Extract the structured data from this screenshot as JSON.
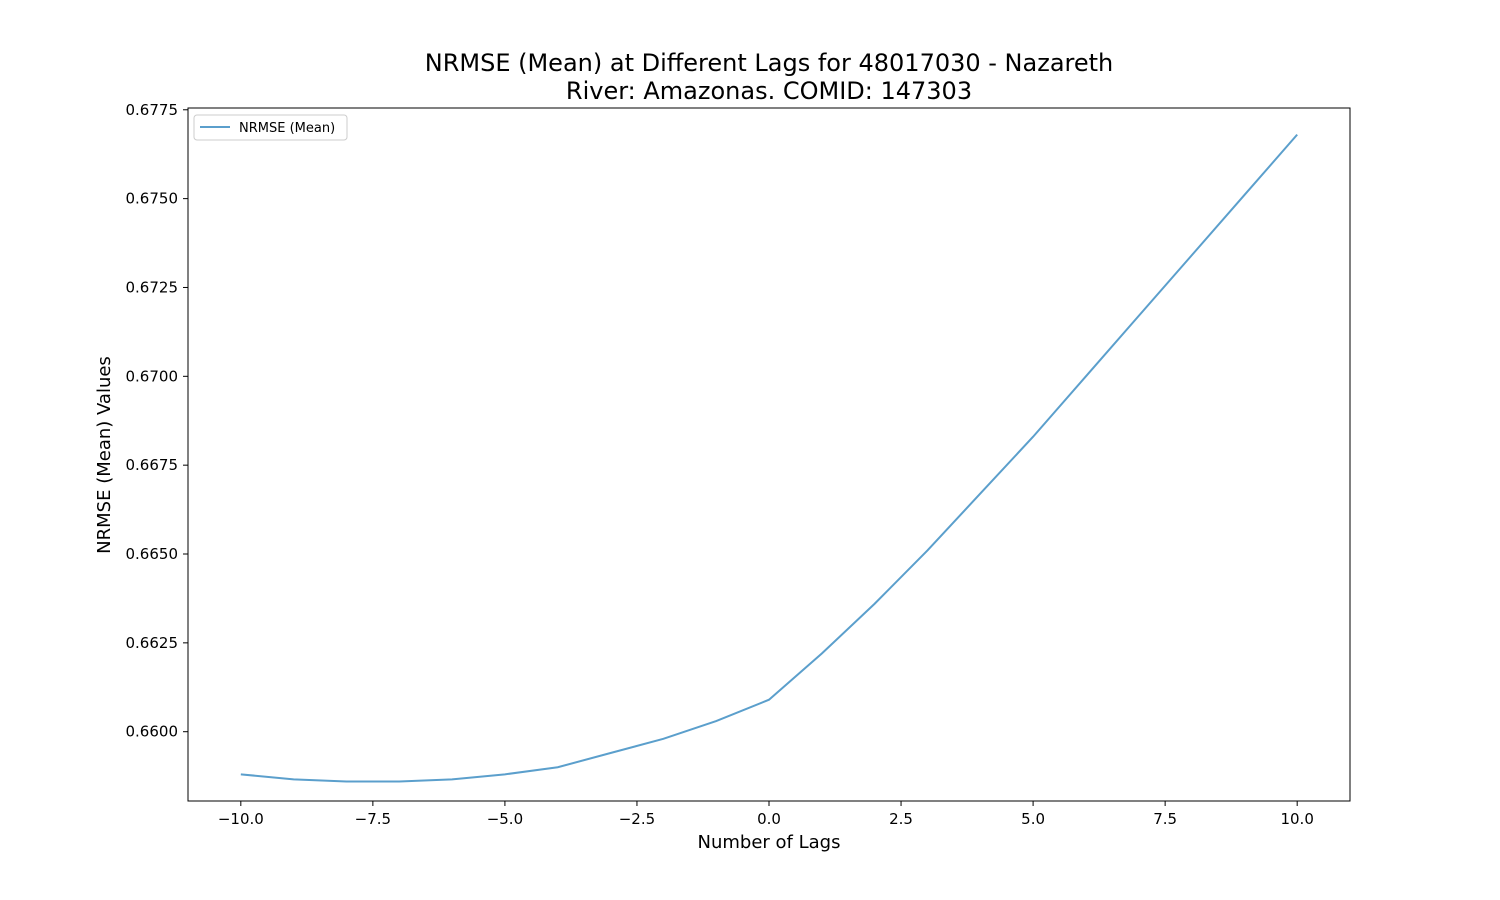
{
  "chart_data": {
    "type": "line",
    "title_line1": "NRMSE (Mean) at Different Lags for 48017030 - Nazareth",
    "title_line2": "River: Amazonas. COMID: 147303",
    "xlabel": "Number of Lags",
    "ylabel": "NRMSE (Mean) Values",
    "xlim": [
      -11,
      11
    ],
    "ylim": [
      0.65805,
      0.67755
    ],
    "x_ticks": [
      -10.0,
      -7.5,
      -5.0,
      -2.5,
      0.0,
      2.5,
      5.0,
      7.5,
      10.0
    ],
    "x_tick_labels": [
      "−10.0",
      "−7.5",
      "−5.0",
      "−2.5",
      "0.0",
      "2.5",
      "5.0",
      "7.5",
      "10.0"
    ],
    "y_ticks": [
      0.66,
      0.6625,
      0.665,
      0.6675,
      0.67,
      0.6725,
      0.675,
      0.6775
    ],
    "y_tick_labels": [
      "0.6600",
      "0.6625",
      "0.6650",
      "0.6675",
      "0.6700",
      "0.6725",
      "0.6750",
      "0.6775"
    ],
    "grid": false,
    "legend_position": "top-left",
    "series": [
      {
        "name": "NRMSE (Mean)",
        "color": "#5b9fcc",
        "x": [
          -10,
          -9,
          -8,
          -7,
          -6,
          -5,
          -4,
          -3,
          -2,
          -1,
          0,
          1,
          2,
          3,
          4,
          5,
          6,
          7,
          8,
          9,
          10
        ],
        "y": [
          0.6588,
          0.65866,
          0.6586,
          0.6586,
          0.65866,
          0.6588,
          0.659,
          0.6594,
          0.6598,
          0.6603,
          0.6609,
          0.6622,
          0.6636,
          0.6651,
          0.6667,
          0.6683,
          0.67,
          0.6717,
          0.6734,
          0.6751,
          0.6768
        ]
      }
    ]
  }
}
